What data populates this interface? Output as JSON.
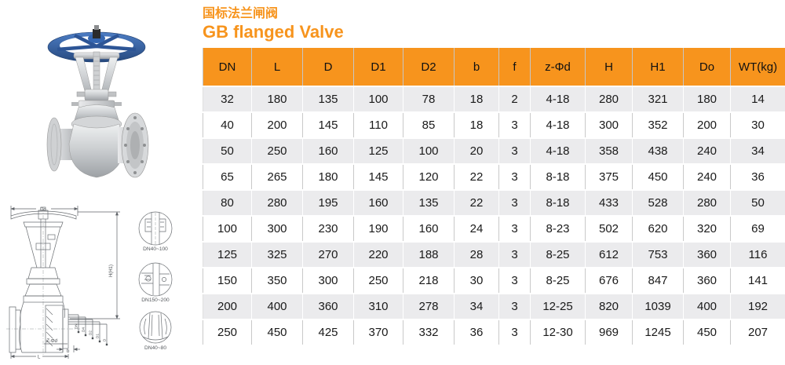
{
  "title": {
    "zh": "国标法兰闸阀",
    "en": "GB flanged Valve"
  },
  "colors": {
    "accent": "#f7941d",
    "table_alt_row": "#ebebed",
    "table_grid": "#c9c9c9",
    "text": "#1a1a1a",
    "handwheel_blue": "#3566b0",
    "drawing_line": "#5f6368"
  },
  "photo": {
    "name": "gate-valve-photo"
  },
  "drawing": {
    "dims": {
      "top_width": "Do",
      "height": "H(H1)",
      "bolt_holes": "Z-Φd",
      "flange_thickness": "b",
      "length": "L"
    },
    "nested_dims": [
      "DN",
      "D4",
      "D2",
      "D1",
      "D"
    ],
    "details": [
      {
        "label": "DN40~100"
      },
      {
        "label": "DN150~200"
      },
      {
        "label": "DN40~80"
      }
    ]
  },
  "table": {
    "columns": [
      "DN",
      "L",
      "D",
      "D1",
      "D2",
      "b",
      "f",
      "z-Φd",
      "H",
      "H1",
      "Do",
      "WT(kg)"
    ],
    "rows": [
      [
        "32",
        "180",
        "135",
        "100",
        "78",
        "18",
        "2",
        "4-18",
        "280",
        "321",
        "180",
        "14"
      ],
      [
        "40",
        "200",
        "145",
        "110",
        "85",
        "18",
        "3",
        "4-18",
        "300",
        "352",
        "200",
        "30"
      ],
      [
        "50",
        "250",
        "160",
        "125",
        "100",
        "20",
        "3",
        "4-18",
        "358",
        "438",
        "240",
        "34"
      ],
      [
        "65",
        "265",
        "180",
        "145",
        "120",
        "22",
        "3",
        "8-18",
        "375",
        "450",
        "240",
        "36"
      ],
      [
        "80",
        "280",
        "195",
        "160",
        "135",
        "22",
        "3",
        "8-18",
        "433",
        "528",
        "280",
        "50"
      ],
      [
        "100",
        "300",
        "230",
        "190",
        "160",
        "24",
        "3",
        "8-23",
        "502",
        "620",
        "320",
        "69"
      ],
      [
        "125",
        "325",
        "270",
        "220",
        "188",
        "28",
        "3",
        "8-25",
        "612",
        "753",
        "360",
        "116"
      ],
      [
        "150",
        "350",
        "300",
        "250",
        "218",
        "30",
        "3",
        "8-25",
        "676",
        "847",
        "360",
        "141"
      ],
      [
        "200",
        "400",
        "360",
        "310",
        "278",
        "34",
        "3",
        "12-25",
        "820",
        "1039",
        "400",
        "192"
      ],
      [
        "250",
        "450",
        "425",
        "370",
        "332",
        "36",
        "3",
        "12-30",
        "969",
        "1245",
        "450",
        "207"
      ]
    ]
  }
}
